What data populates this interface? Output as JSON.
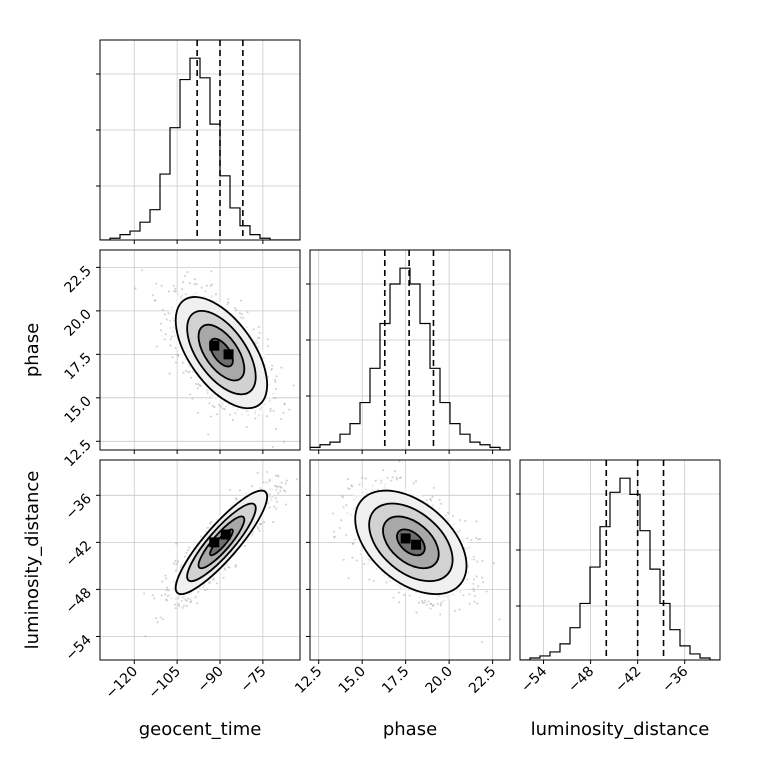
{
  "chart_data": {
    "type": "corner",
    "parameters": [
      {
        "name": "geocent_time",
        "label": "geocent_time",
        "range": [
          -132,
          -62
        ],
        "ticks": [
          -120,
          -105,
          -90,
          -75
        ],
        "tick_labels": [
          "−120",
          "−105",
          "−90",
          "−75"
        ],
        "quantiles": [
          -98,
          -90,
          -82
        ],
        "histogram": {
          "edges_start": -132,
          "bin_width": 3.5,
          "counts": [
            0,
            1,
            3,
            5,
            10,
            17,
            37,
            63,
            90,
            102,
            91,
            65,
            36,
            18,
            8,
            3,
            1,
            0,
            0,
            0
          ]
        }
      },
      {
        "name": "phase",
        "label": "phase",
        "range": [
          12.0,
          23.5
        ],
        "ticks": [
          12.5,
          15.0,
          17.5,
          20.0,
          22.5
        ],
        "tick_labels": [
          "12.5",
          "15.0",
          "17.5",
          "20.0",
          "22.5"
        ],
        "quantiles": [
          16.3,
          17.7,
          19.1
        ],
        "histogram": {
          "edges_start": 12.0,
          "bin_width": 0.575,
          "counts": [
            1,
            2,
            3,
            6,
            10,
            18,
            31,
            48,
            63,
            69,
            63,
            48,
            31,
            18,
            10,
            6,
            3,
            2,
            1,
            0
          ]
        }
      },
      {
        "name": "luminosity_distance",
        "label": "luminosity_distance",
        "range": [
          -57,
          -31.5
        ],
        "ticks": [
          -54,
          -48,
          -42,
          -36
        ],
        "tick_labels": [
          "−54",
          "−48",
          "−42",
          "−36"
        ],
        "quantiles": [
          -46,
          -42,
          -38.7
        ],
        "histogram": {
          "edges_start": -57,
          "bin_width": 1.275,
          "counts": [
            0,
            1,
            2,
            4,
            8,
            16,
            28,
            46,
            66,
            83,
            90,
            82,
            64,
            45,
            28,
            15,
            7,
            3,
            1,
            0
          ]
        }
      }
    ],
    "pairs": [
      {
        "x": "geocent_time",
        "y": "phase",
        "mean": [
          -89.5,
          17.6
        ],
        "std": [
          8.0,
          1.6
        ],
        "correlation": -0.58,
        "contour_sigma_levels": [
          0.5,
          1.0,
          1.5,
          2.0
        ],
        "peak_cells": [
          [
            -92,
            18.0
          ],
          [
            -87,
            17.5
          ]
        ]
      },
      {
        "x": "geocent_time",
        "y": "luminosity_distance",
        "mean": [
          -89.5,
          -42.0
        ],
        "std": [
          8.0,
          3.3
        ],
        "correlation": 0.88,
        "contour_sigma_levels": [
          0.5,
          1.0,
          1.5,
          2.0
        ],
        "peak_cells": [
          [
            -92,
            -42.0
          ],
          [
            -88,
            -41.0
          ]
        ]
      },
      {
        "x": "phase",
        "y": "luminosity_distance",
        "mean": [
          17.8,
          -42.0
        ],
        "std": [
          1.6,
          3.3
        ],
        "correlation": -0.45,
        "contour_sigma_levels": [
          0.5,
          1.0,
          1.5,
          2.0
        ],
        "peak_cells": [
          [
            17.5,
            -41.5
          ],
          [
            18.1,
            -42.3
          ]
        ]
      }
    ],
    "grid": true
  }
}
